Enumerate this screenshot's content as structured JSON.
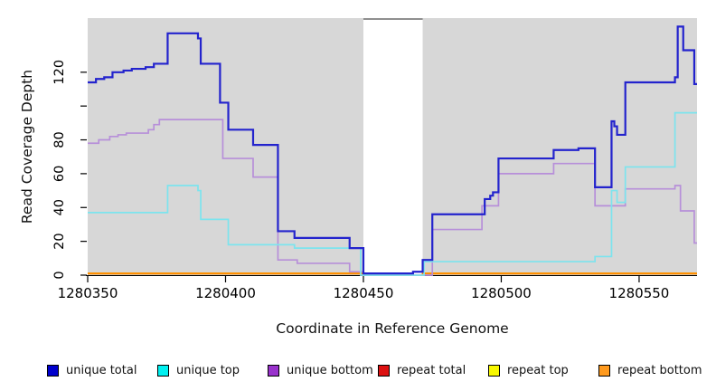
{
  "figure": {
    "background": "#ffffff",
    "plot_background": "#d7d7d7",
    "masked_band_color": "#ffffff",
    "masked_band_top_border": "#8f8f8f",
    "axis_color": "#000000"
  },
  "chart_data": {
    "type": "line",
    "subtype": "step-post",
    "title": "",
    "xlabel": "Coordinate in Reference Genome",
    "ylabel": "Read Coverage Depth",
    "xlim": [
      1280350,
      1280571
    ],
    "ylim": [
      0,
      152
    ],
    "grid": false,
    "legend_position": "bottom",
    "x_ticks": [
      {
        "value": 1280350,
        "label": "1280350"
      },
      {
        "value": 1280400,
        "label": "1280400"
      },
      {
        "value": 1280450,
        "label": "1280450"
      },
      {
        "value": 1280500,
        "label": "1280500"
      },
      {
        "value": 1280550,
        "label": "1280550"
      }
    ],
    "y_ticks": [
      {
        "value": 0,
        "label": "0"
      },
      {
        "value": 20,
        "label": "20"
      },
      {
        "value": 40,
        "label": "40"
      },
      {
        "value": 60,
        "label": "60"
      },
      {
        "value": 80,
        "label": "80"
      },
      {
        "value": 100,
        "label": ""
      },
      {
        "value": 120,
        "label": "120"
      }
    ],
    "masked_region": {
      "x_start": 1280450,
      "x_end": 1280471.5
    },
    "series": [
      {
        "name": "unique total",
        "color": "#0000cd",
        "line_color": "#2323cd",
        "line_width": 2.2,
        "z": 6,
        "points": [
          [
            1280350,
            114
          ],
          [
            1280353,
            116
          ],
          [
            1280356,
            117
          ],
          [
            1280359,
            120
          ],
          [
            1280363,
            121
          ],
          [
            1280366,
            122
          ],
          [
            1280371,
            123
          ],
          [
            1280374,
            125
          ],
          [
            1280379,
            143
          ],
          [
            1280390,
            140
          ],
          [
            1280391,
            125
          ],
          [
            1280398,
            102
          ],
          [
            1280401,
            86
          ],
          [
            1280410,
            77
          ],
          [
            1280419,
            26
          ],
          [
            1280425,
            22
          ],
          [
            1280445,
            16
          ],
          [
            1280450,
            1
          ],
          [
            1280468,
            2
          ],
          [
            1280471.5,
            9
          ],
          [
            1280475,
            36
          ],
          [
            1280494,
            45
          ],
          [
            1280496,
            47
          ],
          [
            1280497,
            49
          ],
          [
            1280499,
            69
          ],
          [
            1280519,
            74
          ],
          [
            1280528,
            75
          ],
          [
            1280534,
            52
          ],
          [
            1280540,
            91
          ],
          [
            1280541,
            88
          ],
          [
            1280542,
            83
          ],
          [
            1280545,
            114
          ],
          [
            1280563,
            117
          ],
          [
            1280564,
            147
          ],
          [
            1280566,
            133
          ],
          [
            1280570,
            113
          ]
        ]
      },
      {
        "name": "unique top",
        "color": "#00f0f0",
        "line_color": "#7ce4ee",
        "line_width": 1.7,
        "z": 5,
        "points": [
          [
            1280350,
            37
          ],
          [
            1280379,
            53
          ],
          [
            1280390,
            50
          ],
          [
            1280391,
            33
          ],
          [
            1280401,
            18
          ],
          [
            1280425,
            16
          ],
          [
            1280449,
            0
          ],
          [
            1280472,
            8
          ],
          [
            1280534,
            11
          ],
          [
            1280540,
            50
          ],
          [
            1280542,
            43
          ],
          [
            1280545,
            64
          ],
          [
            1280563,
            96
          ]
        ]
      },
      {
        "name": "unique bottom",
        "color": "#9932cc",
        "line_color": "#b78fd9",
        "line_width": 1.7,
        "z": 4,
        "points": [
          [
            1280350,
            78
          ],
          [
            1280354,
            80
          ],
          [
            1280358,
            82
          ],
          [
            1280361,
            83
          ],
          [
            1280364,
            84
          ],
          [
            1280372,
            86
          ],
          [
            1280374,
            89
          ],
          [
            1280376,
            92
          ],
          [
            1280399,
            69
          ],
          [
            1280410,
            58
          ],
          [
            1280419,
            9
          ],
          [
            1280426,
            7
          ],
          [
            1280445,
            2
          ],
          [
            1280450,
            0
          ],
          [
            1280475,
            27
          ],
          [
            1280493,
            41
          ],
          [
            1280499,
            60
          ],
          [
            1280519,
            66
          ],
          [
            1280534,
            41
          ],
          [
            1280545,
            51
          ],
          [
            1280563,
            53
          ],
          [
            1280565,
            38
          ],
          [
            1280570,
            19
          ]
        ]
      },
      {
        "name": "repeat total",
        "color": "#dd1111",
        "line_color": "#dd1111",
        "line_width": 2,
        "z": 1,
        "points": [
          [
            1280350,
            1
          ],
          [
            1280450,
            0
          ],
          [
            1280471.5,
            1
          ]
        ]
      },
      {
        "name": "repeat top",
        "color": "#f8f800",
        "line_color": "#f8f800",
        "line_width": 2,
        "z": 2,
        "points": [
          [
            1280350,
            1
          ],
          [
            1280450,
            0
          ],
          [
            1280471.5,
            1
          ]
        ]
      },
      {
        "name": "repeat bottom",
        "color": "#ff9a1e",
        "line_color": "#ff8c00",
        "line_width": 2,
        "z": 3,
        "points": [
          [
            1280350,
            1
          ],
          [
            1280450,
            0
          ],
          [
            1280471.5,
            1
          ]
        ]
      }
    ]
  }
}
